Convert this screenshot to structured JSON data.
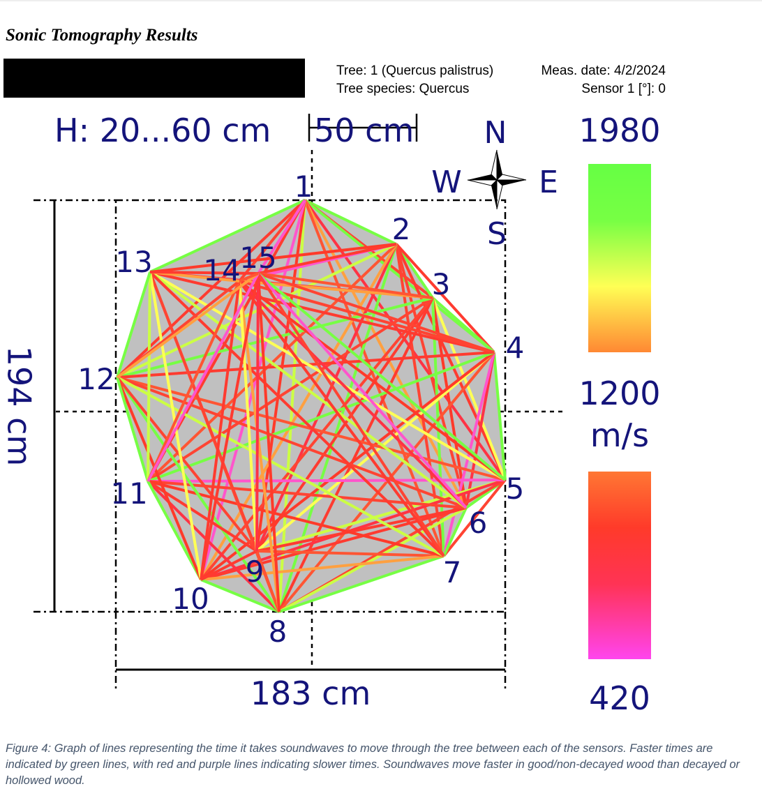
{
  "title": "Sonic Tomography Results",
  "info": {
    "tree": "Tree: 1 (Quercus palistrus)",
    "date": "Meas. date: 4/2/2024",
    "species": "Tree species: Quercus",
    "sensor": "Sensor 1 [°]: 0"
  },
  "height_range": "H: 20...60 cm",
  "scale_bar": "50 cm",
  "compass": {
    "n": "N",
    "w": "W",
    "e": "E",
    "s": "S"
  },
  "legend": {
    "top": "1980",
    "mid": "1200",
    "unit": "m/s",
    "bottom": "420"
  },
  "dimensions": {
    "vertical": "194 cm",
    "horizontal": "183 cm"
  },
  "sensors": [
    "1",
    "2",
    "3",
    "4",
    "5",
    "6",
    "7",
    "8",
    "9",
    "10",
    "11",
    "12",
    "13",
    "14",
    "15"
  ],
  "caption": "Figure 4: Graph of lines representing the time it takes soundwaves to move through the tree between each of the sensors. Faster times are indicated by green lines, with red and purple lines indicating slower times. Soundwaves move faster in good/non-decayed wood than decayed or hollowed wood."
}
